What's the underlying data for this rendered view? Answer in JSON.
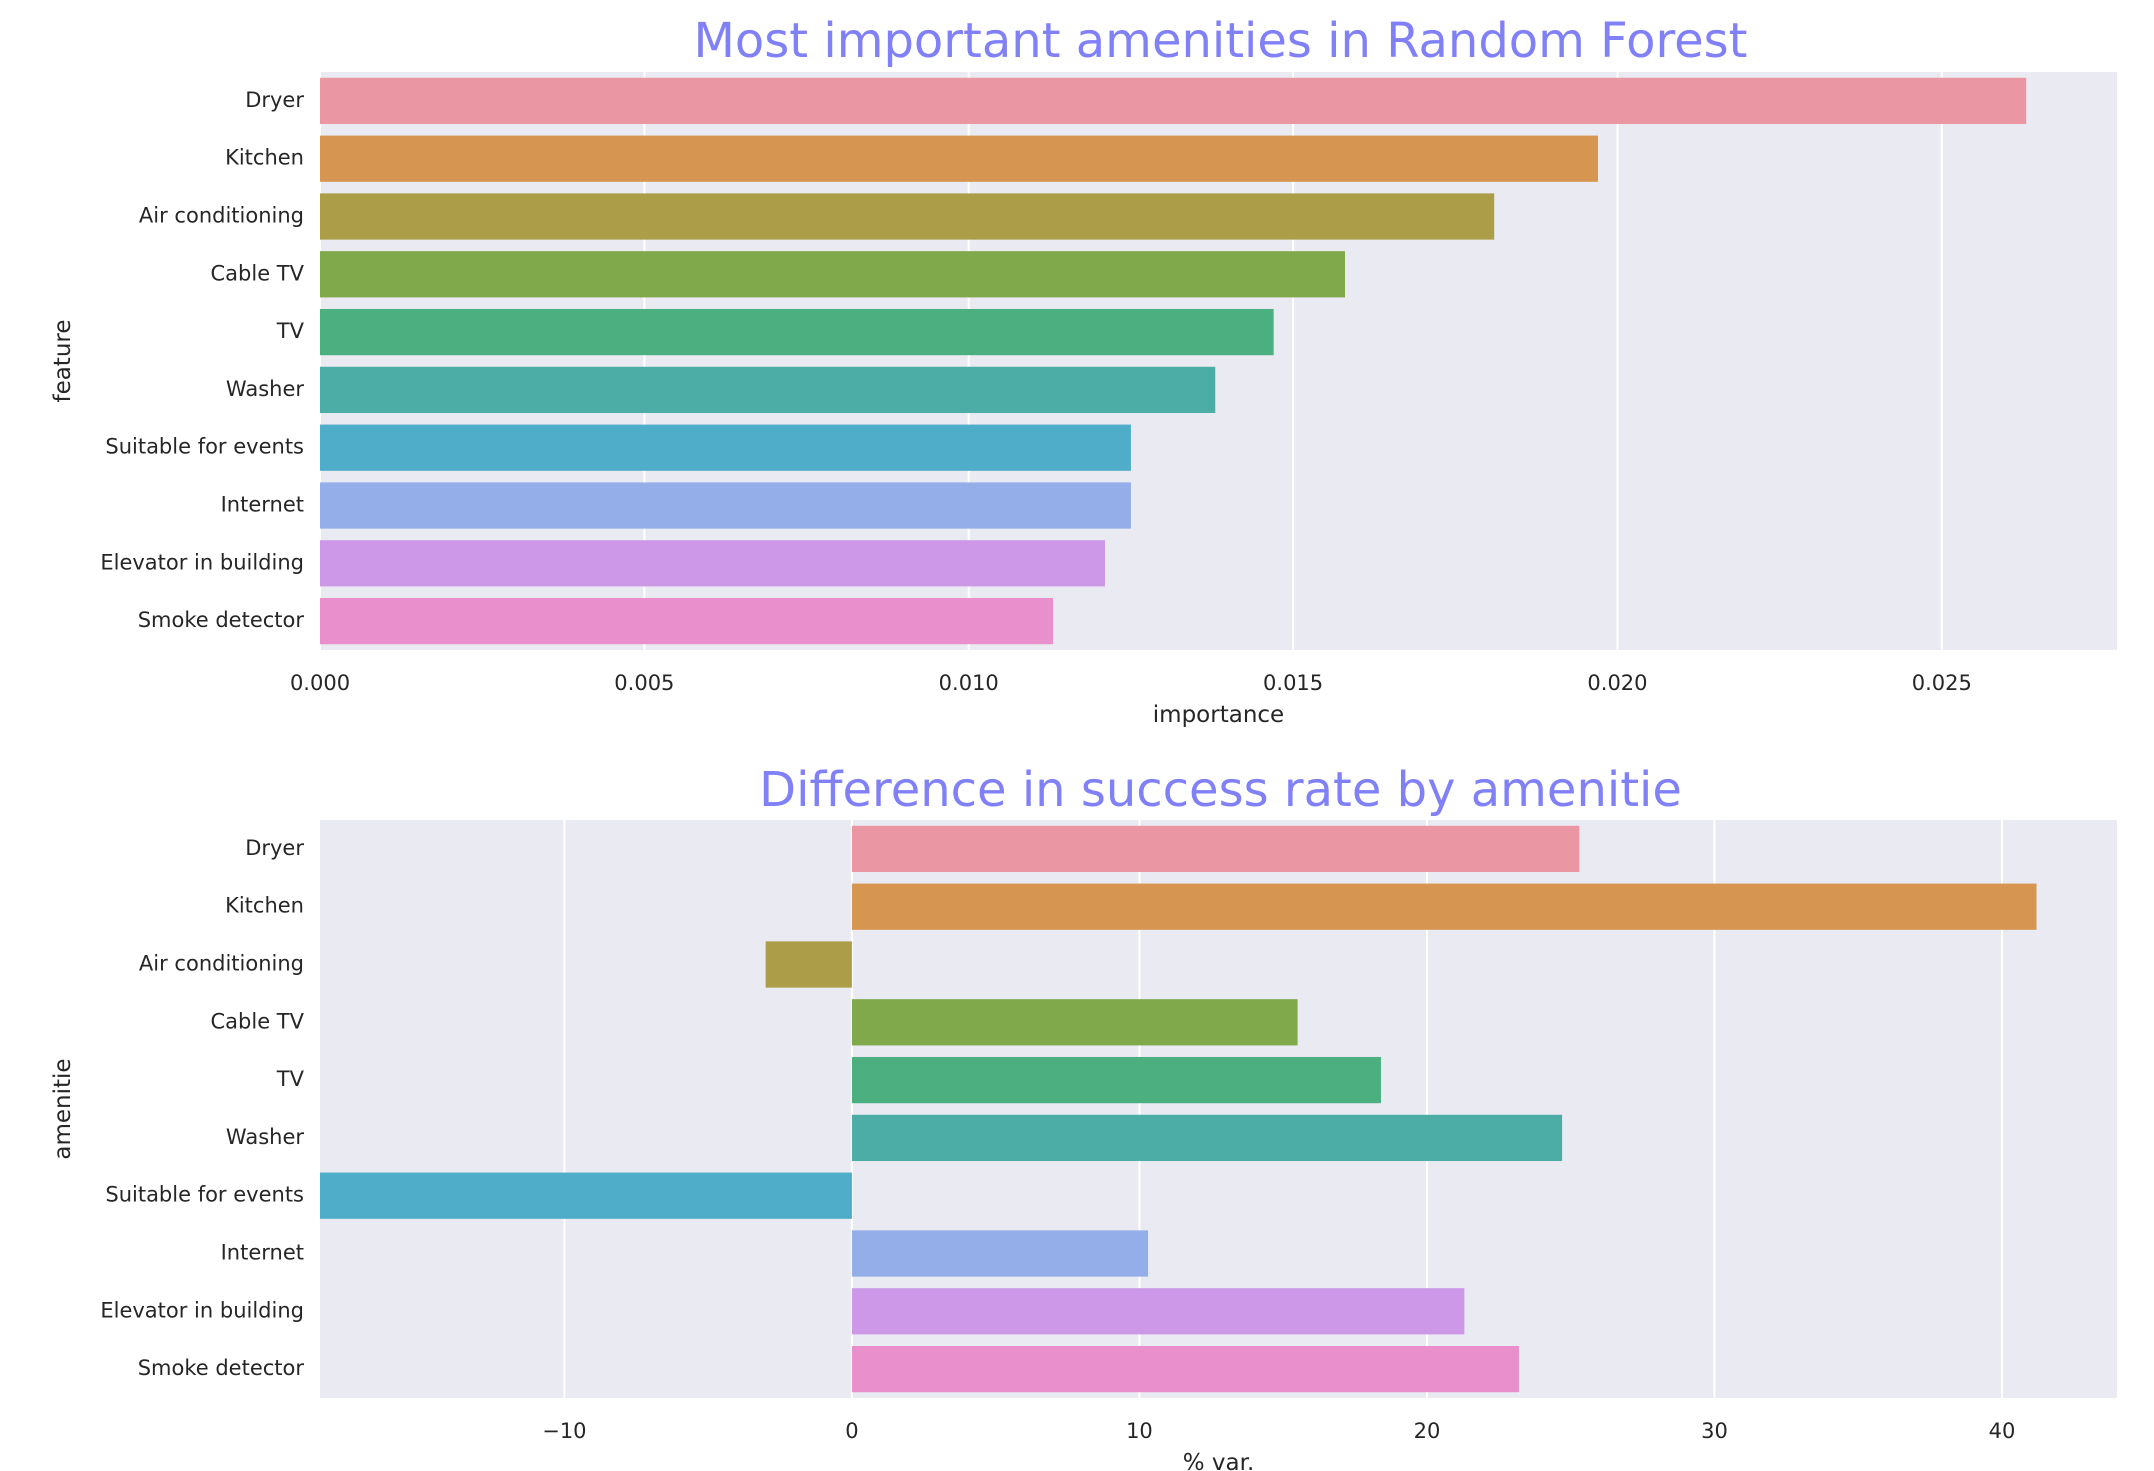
{
  "colors": {
    "title": "#8080f8",
    "panel_bg": "#eaeaf2",
    "grid": "#ffffff",
    "bars": [
      "#ea96a3",
      "#d69550",
      "#ac9d48",
      "#7fa94a",
      "#4baf7f",
      "#4cada7",
      "#50adc9",
      "#93aee8",
      "#cd98e8",
      "#e98fcb"
    ]
  },
  "chart_data": [
    {
      "type": "bar",
      "orientation": "horizontal",
      "title": "Most important amenities in Random Forest",
      "xlabel": "importance",
      "ylabel": "feature",
      "categories": [
        "Dryer",
        "Kitchen",
        "Air conditioning",
        "Cable TV",
        "TV",
        "Washer",
        "Suitable for events",
        "Internet",
        "Elevator in building",
        "Smoke detector"
      ],
      "values": [
        0.0263,
        0.0197,
        0.0181,
        0.0158,
        0.0147,
        0.0138,
        0.0125,
        0.0125,
        0.0121,
        0.0113
      ],
      "xlim": [
        0,
        0.0277
      ],
      "xticks": [
        0.0,
        0.005,
        0.01,
        0.015,
        0.02,
        0.025
      ],
      "xtick_labels": [
        "0.000",
        "0.005",
        "0.010",
        "0.015",
        "0.020",
        "0.025"
      ],
      "grid": true
    },
    {
      "type": "bar",
      "orientation": "horizontal",
      "title": "Difference in success rate by amenitie",
      "xlabel": "% var.",
      "ylabel": "amenitie",
      "categories": [
        "Dryer",
        "Kitchen",
        "Air conditioning",
        "Cable TV",
        "TV",
        "Washer",
        "Suitable for events",
        "Internet",
        "Elevator in building",
        "Smoke detector"
      ],
      "values": [
        25.3,
        41.2,
        -3.0,
        15.5,
        18.4,
        24.7,
        -18.5,
        10.3,
        21.3,
        23.2
      ],
      "xlim": [
        -18.5,
        44.0
      ],
      "xticks": [
        -10,
        0,
        10,
        20,
        30,
        40
      ],
      "xtick_labels": [
        "−10",
        "0",
        "10",
        "20",
        "30",
        "40"
      ],
      "grid": true
    }
  ]
}
